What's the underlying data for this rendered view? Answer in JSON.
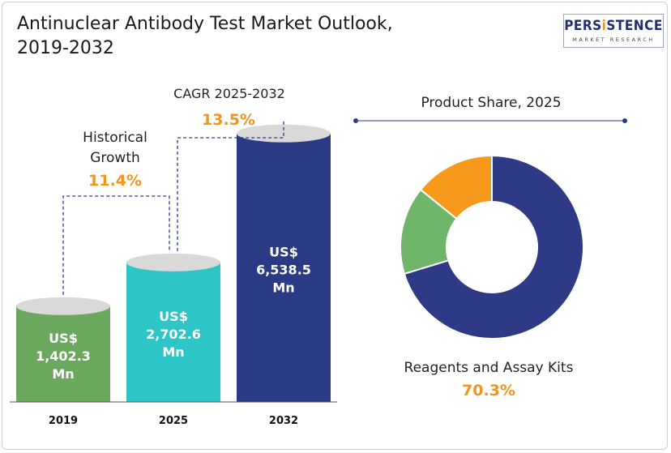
{
  "header": {
    "title_line1": "Antinuclear Antibody Test Market Outlook,",
    "title_line2": "2019-2032",
    "logo_text_a": "PERS",
    "logo_text_b": "i",
    "logo_text_c": "STENCE",
    "logo_subtext": "MARKET RESEARCH"
  },
  "chart_data": [
    {
      "type": "bar",
      "categories": [
        "2019",
        "2025",
        "2032"
      ],
      "values": [
        1402.3,
        2702.6,
        6538.5
      ],
      "value_labels": [
        [
          "US$",
          "1,402.3",
          "Mn"
        ],
        [
          "US$",
          "2,702.6",
          "Mn"
        ],
        [
          "US$",
          "6,538.5",
          "Mn"
        ]
      ],
      "colors": [
        "#6aa85e",
        "#2ec5c6",
        "#2b3a84"
      ],
      "annotations": {
        "historical_label_line1": "Historical",
        "historical_label_line2": "Growth",
        "historical_value": "11.4%",
        "cagr_label": "CAGR 2025-2032",
        "cagr_value": "13.5%"
      },
      "accent_color": "#f0961f"
    },
    {
      "type": "pie",
      "title": "Product Share, 2025",
      "slices": [
        {
          "name": "Reagents and Assay Kits",
          "value": 70.3,
          "color": "#2f3a86"
        },
        {
          "value": 15.5,
          "color": "#6fb56a"
        },
        {
          "value": 14.2,
          "color": "#f79a1c"
        }
      ],
      "highlight_label": "Reagents and Assay Kits",
      "highlight_value": "70.3%"
    }
  ]
}
